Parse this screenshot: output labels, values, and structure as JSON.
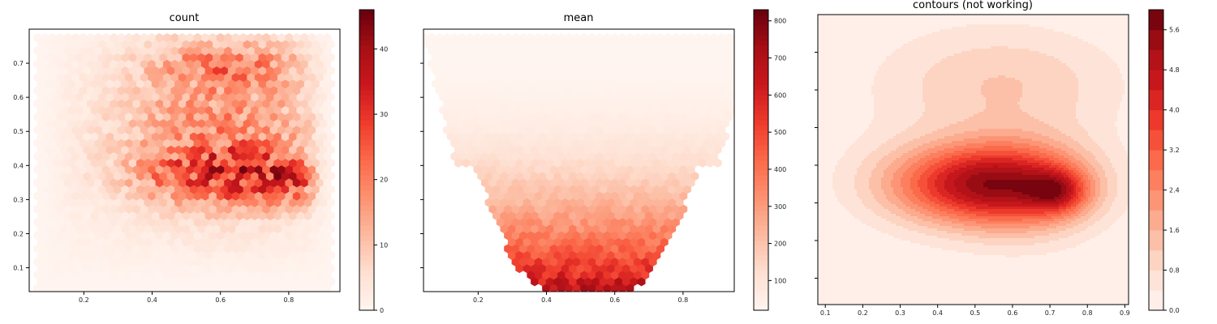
{
  "chart_data": [
    {
      "type": "heatmap",
      "subtype": "hexbin",
      "title": "count",
      "colormap": "Reds",
      "xlim": [
        0.04,
        0.95
      ],
      "ylim": [
        0.03,
        0.8
      ],
      "x_ticks": [
        0.2,
        0.4,
        0.6,
        0.8
      ],
      "y_ticks": [
        0.1,
        0.2,
        0.3,
        0.4,
        0.5,
        0.6,
        0.7
      ],
      "colorbar": {
        "min": 0,
        "max": 46,
        "ticks": [
          0,
          10,
          20,
          30,
          40
        ]
      },
      "notes": "dense cluster around (0.4–0.85, 0.3–0.45) with max ~45 near (0.8, 0.33); secondary band near y=0.7"
    },
    {
      "type": "heatmap",
      "subtype": "hexbin",
      "title": "mean",
      "colormap": "Reds",
      "xlim": [
        0.04,
        0.95
      ],
      "ylim": [
        0.03,
        0.8
      ],
      "x_ticks": [
        0.2,
        0.4,
        0.6,
        0.8
      ],
      "y_ticks": [
        0.1,
        0.2,
        0.3,
        0.4,
        0.5,
        0.6,
        0.7
      ],
      "colorbar": {
        "min": 20,
        "max": 830,
        "ticks": [
          100,
          200,
          300,
          400,
          500,
          600,
          700,
          800
        ]
      },
      "notes": "values increase toward the bottom (low y); highest ~820 near (0.38, 0.04)"
    },
    {
      "type": "contourf",
      "title": "contours (not working)",
      "colormap": "Reds",
      "xlim": [
        0.08,
        0.91
      ],
      "ylim": [
        0.03,
        0.8
      ],
      "x_ticks": [
        0.1,
        0.2,
        0.3,
        0.4,
        0.5,
        0.6,
        0.7,
        0.8,
        0.9
      ],
      "colorbar": {
        "min": 0,
        "max": 6.0,
        "ticks": [
          0.0,
          0.8,
          1.6,
          2.4,
          3.2,
          4.0,
          4.8,
          5.6
        ]
      },
      "levels": [
        0,
        0.4,
        0.8,
        1.2,
        1.6,
        2.0,
        2.4,
        2.8,
        3.2,
        3.6,
        4.0,
        4.4,
        4.8,
        5.2,
        5.6,
        6.0
      ],
      "peaks": [
        {
          "x": 0.72,
          "y": 0.33,
          "value": 6.0
        },
        {
          "x": 0.45,
          "y": 0.35,
          "value": 4.6
        },
        {
          "x": 0.6,
          "y": 0.65,
          "value": 1.2
        }
      ]
    }
  ]
}
